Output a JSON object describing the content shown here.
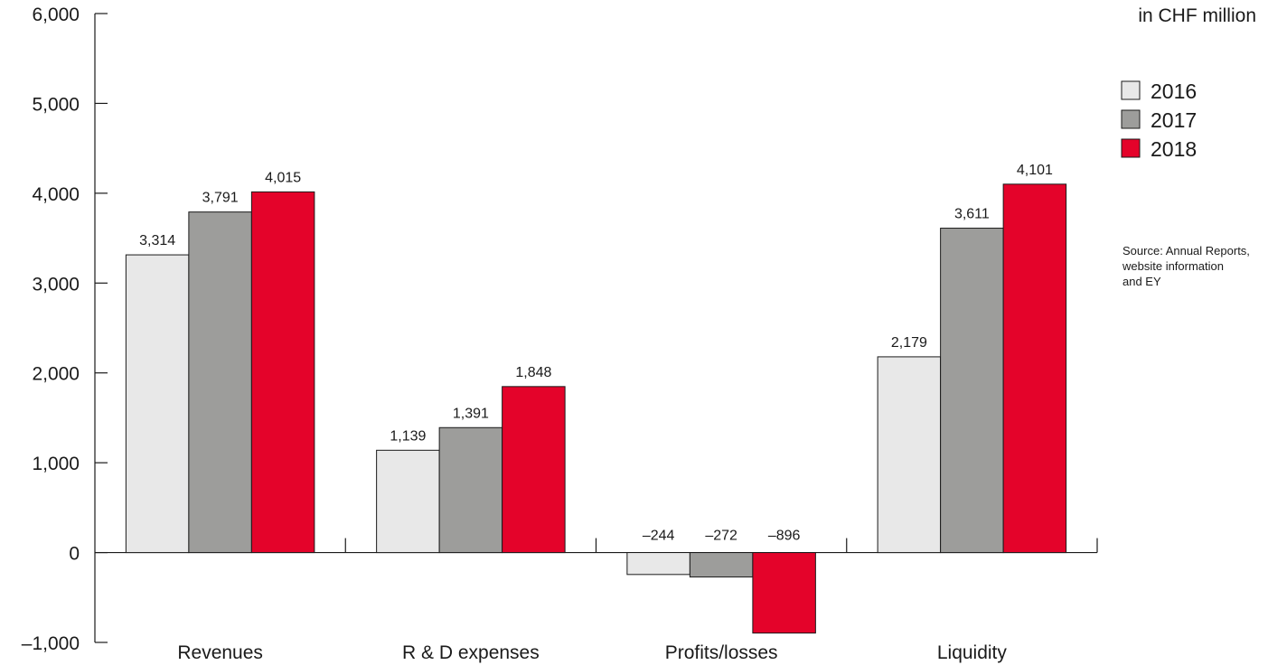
{
  "chart_data": {
    "type": "bar",
    "categories": [
      "Revenues",
      "R & D expenses",
      "Profits/losses",
      "Liquidity"
    ],
    "series": [
      {
        "name": "2016",
        "color": "#e8e8e8",
        "values": [
          3314,
          1139,
          -244,
          2179
        ],
        "labels": [
          "3,314",
          "1,139",
          "–244",
          "2,179"
        ]
      },
      {
        "name": "2017",
        "color": "#9d9d9b",
        "values": [
          3791,
          1391,
          -272,
          3611
        ],
        "labels": [
          "3,791",
          "1,391",
          "–272",
          "3,611"
        ]
      },
      {
        "name": "2018",
        "color": "#e4032a",
        "values": [
          4015,
          1848,
          -896,
          4101
        ],
        "labels": [
          "4,015",
          "1,848",
          "–896",
          "4,101"
        ]
      }
    ],
    "ylim": [
      -1000,
      6000
    ],
    "yticks": [
      -1000,
      0,
      1000,
      2000,
      3000,
      4000,
      5000,
      6000
    ],
    "ytick_labels": [
      "–1,000",
      "0",
      "1,000",
      "2,000",
      "3,000",
      "4,000",
      "5,000",
      "6,000"
    ],
    "unit_label": "in CHF million",
    "legend_position": "top-right",
    "source_lines": [
      "Source: Annual Reports,",
      "website information",
      "and EY"
    ],
    "grid": false
  }
}
